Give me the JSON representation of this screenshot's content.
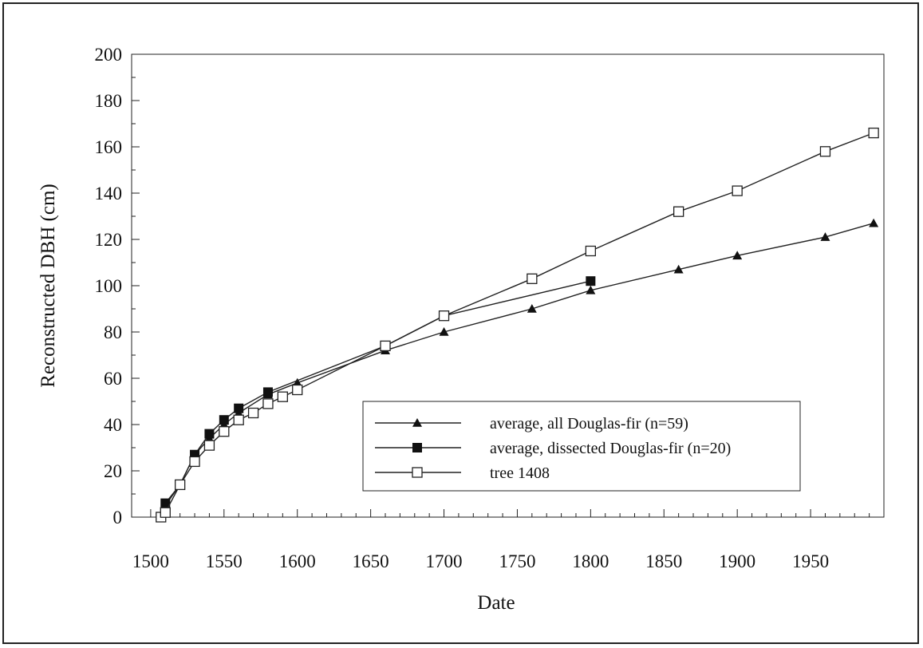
{
  "chart_data": {
    "type": "line",
    "title": "",
    "xlabel": "Date",
    "ylabel": "Reconstructed DBH (cm)",
    "xlim": [
      1500,
      2000
    ],
    "ylim": [
      0,
      200
    ],
    "x_ticks": [
      1500,
      1550,
      1600,
      1650,
      1700,
      1750,
      1800,
      1850,
      1900,
      1950
    ],
    "y_ticks": [
      0,
      20,
      40,
      60,
      80,
      100,
      120,
      140,
      160,
      180,
      200
    ],
    "grid": false,
    "legend_position": "bottom-right",
    "series": [
      {
        "name": "average, all Douglas-fir (n=59)",
        "marker": "filled-triangle",
        "points": [
          [
            1510,
            5
          ],
          [
            1520,
            14
          ],
          [
            1530,
            27
          ],
          [
            1540,
            34
          ],
          [
            1550,
            40
          ],
          [
            1560,
            45
          ],
          [
            1580,
            53
          ],
          [
            1600,
            58
          ],
          [
            1660,
            72
          ],
          [
            1700,
            80
          ],
          [
            1760,
            90
          ],
          [
            1800,
            98
          ],
          [
            1860,
            107
          ],
          [
            1900,
            113
          ],
          [
            1960,
            121
          ],
          [
            1993,
            127
          ]
        ]
      },
      {
        "name": "average, dissected Douglas-fir (n=20)",
        "marker": "filled-square",
        "points": [
          [
            1510,
            6
          ],
          [
            1520,
            14
          ],
          [
            1530,
            27
          ],
          [
            1540,
            36
          ],
          [
            1550,
            42
          ],
          [
            1560,
            47
          ],
          [
            1580,
            54
          ],
          [
            1660,
            74
          ],
          [
            1700,
            87
          ],
          [
            1800,
            102
          ]
        ]
      },
      {
        "name": "tree 1408",
        "marker": "open-square",
        "points": [
          [
            1507,
            0
          ],
          [
            1510,
            2
          ],
          [
            1520,
            14
          ],
          [
            1530,
            24
          ],
          [
            1540,
            31
          ],
          [
            1550,
            37
          ],
          [
            1560,
            42
          ],
          [
            1570,
            45
          ],
          [
            1580,
            49
          ],
          [
            1590,
            52
          ],
          [
            1600,
            55
          ],
          [
            1660,
            74
          ],
          [
            1700,
            87
          ],
          [
            1760,
            103
          ],
          [
            1800,
            115
          ],
          [
            1860,
            132
          ],
          [
            1900,
            141
          ],
          [
            1960,
            158
          ],
          [
            1993,
            166
          ]
        ]
      }
    ]
  }
}
